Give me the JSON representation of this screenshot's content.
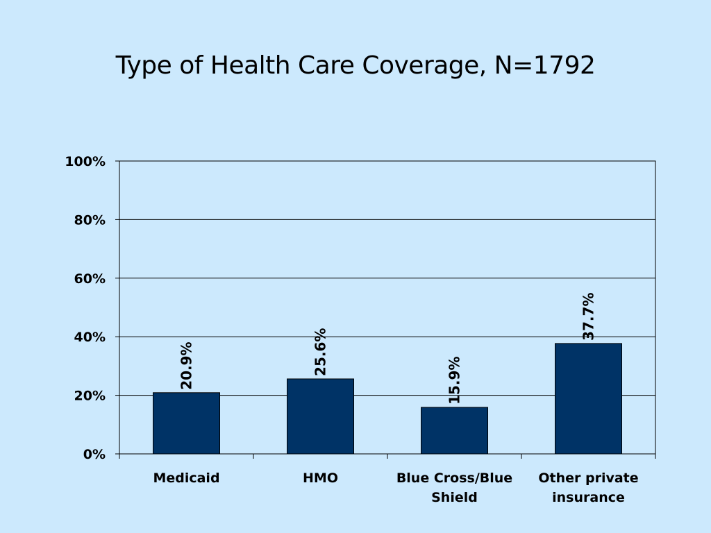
{
  "slide": {
    "title": "Type of Health Care Coverage, N=1792"
  },
  "chart_data": {
    "type": "bar",
    "title": "Type of Health Care Coverage, N=1792",
    "categories": [
      [
        "Medicaid"
      ],
      [
        "HMO"
      ],
      [
        "Blue Cross/Blue",
        "Shield"
      ],
      [
        "Other private",
        "insurance"
      ]
    ],
    "values": [
      20.9,
      25.6,
      15.9,
      37.7
    ],
    "data_labels": [
      "20.9%",
      "25.6%",
      "15.9%",
      "37.7%"
    ],
    "y_ticks": [
      0,
      20,
      40,
      60,
      80,
      100
    ],
    "y_tick_labels": [
      "0%",
      "20%",
      "40%",
      "60%",
      "80%",
      "100%"
    ],
    "ylim": [
      0,
      100
    ],
    "grid": true,
    "legend": "none",
    "colors": {
      "background": "#cce9fd",
      "bar": "#003366",
      "grid": "#000000"
    }
  }
}
